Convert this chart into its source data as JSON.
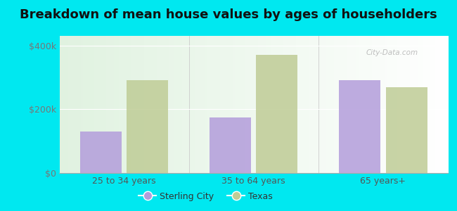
{
  "title": "Breakdown of mean house values by ages of householders",
  "categories": [
    "25 to 34 years",
    "35 to 64 years",
    "65 years+"
  ],
  "sterling_city": [
    130000,
    175000,
    290000
  ],
  "texas": [
    290000,
    370000,
    270000
  ],
  "bar_color_city": "#b39ddb",
  "bar_color_texas": "#bfcc96",
  "background_color": "#00e8f0",
  "yticks": [
    0,
    200000,
    400000
  ],
  "ytick_labels": [
    "$0",
    "$200k",
    "$400k"
  ],
  "ylim": [
    0,
    430000
  ],
  "legend_city": "Sterling City",
  "legend_texas": "Texas",
  "bar_width": 0.32,
  "title_fontsize": 13,
  "tick_fontsize": 9,
  "legend_fontsize": 9,
  "watermark": "City-Data.com"
}
